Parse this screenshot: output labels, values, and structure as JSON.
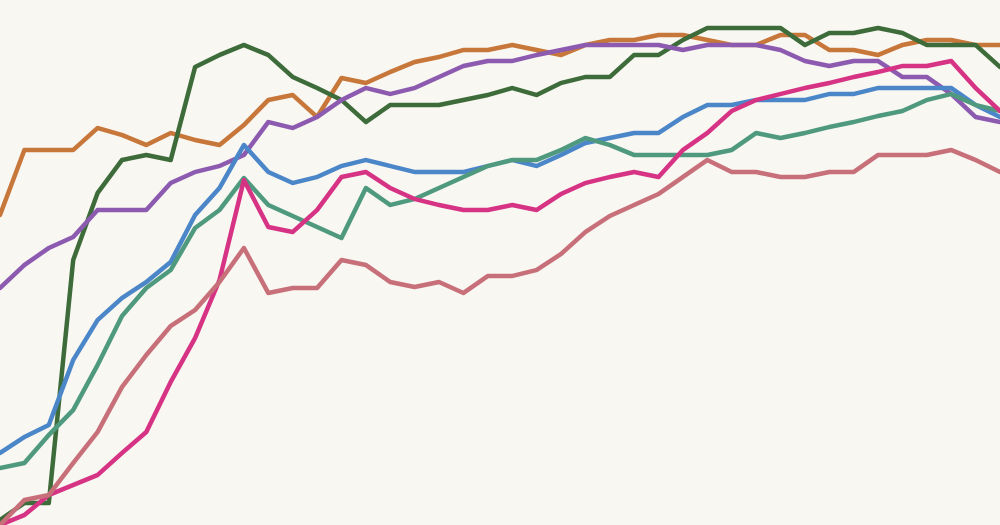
{
  "chart_data": {
    "type": "line",
    "ylim": [
      0,
      525
    ],
    "xlim": [
      0,
      41
    ],
    "series": [
      {
        "color": "#c8773a",
        "values": [
          310,
          375,
          375,
          375,
          397,
          390,
          380,
          392,
          385,
          380,
          400,
          425,
          430,
          408,
          447,
          442,
          453,
          463,
          468,
          475,
          475,
          480,
          475,
          470,
          480,
          485,
          485,
          490,
          490,
          485,
          480,
          480,
          490,
          490,
          475,
          475,
          470,
          480,
          485,
          485,
          480,
          480
        ]
      },
      {
        "color": "#3d6b3a",
        "values": [
          5,
          22,
          22,
          265,
          332,
          365,
          370,
          365,
          458,
          470,
          480,
          470,
          448,
          437,
          425,
          403,
          420,
          420,
          420,
          425,
          430,
          437,
          430,
          442,
          448,
          448,
          470,
          470,
          485,
          497,
          497,
          497,
          497,
          480,
          492,
          492,
          497,
          492,
          480,
          480,
          480,
          458
        ]
      },
      {
        "color": "#8c5bb0",
        "values": [
          237,
          260,
          277,
          288,
          315,
          315,
          315,
          342,
          353,
          359,
          370,
          403,
          397,
          408,
          425,
          437,
          431,
          437,
          448,
          459,
          464,
          464,
          470,
          475,
          480,
          480,
          480,
          480,
          475,
          480,
          480,
          480,
          475,
          464,
          459,
          464,
          464,
          448,
          448,
          431,
          408,
          403
        ]
      },
      {
        "color": "#4a86c8",
        "values": [
          72,
          88,
          100,
          165,
          205,
          227,
          243,
          263,
          310,
          337,
          380,
          353,
          342,
          348,
          359,
          365,
          359,
          353,
          353,
          353,
          359,
          365,
          359,
          370,
          382,
          387,
          392,
          392,
          408,
          420,
          420,
          425,
          425,
          425,
          431,
          431,
          437,
          437,
          437,
          437,
          420,
          408
        ]
      },
      {
        "color": "#4f9a7e",
        "values": [
          57,
          62,
          90,
          115,
          160,
          209,
          237,
          255,
          297,
          315,
          347,
          320,
          309,
          298,
          287,
          337,
          320,
          326,
          337,
          348,
          359,
          365,
          365,
          375,
          387,
          380,
          370,
          370,
          370,
          370,
          375,
          392,
          387,
          392,
          398,
          403,
          409,
          414,
          425,
          431,
          420,
          414
        ]
      },
      {
        "color": "#d63384",
        "values": [
          0,
          10,
          30,
          40,
          50,
          72,
          93,
          143,
          187,
          245,
          345,
          298,
          293,
          315,
          348,
          353,
          337,
          326,
          320,
          315,
          315,
          320,
          315,
          331,
          342,
          348,
          353,
          348,
          375,
          392,
          414,
          425,
          431,
          437,
          442,
          448,
          453,
          459,
          459,
          464,
          437,
          414
        ]
      },
      {
        "color": "#c8707a",
        "values": [
          0,
          25,
          30,
          62,
          93,
          138,
          170,
          199,
          215,
          243,
          277,
          232,
          237,
          237,
          265,
          260,
          243,
          238,
          243,
          232,
          249,
          249,
          255,
          271,
          293,
          309,
          320,
          331,
          348,
          365,
          353,
          353,
          348,
          348,
          353,
          353,
          370,
          370,
          370,
          375,
          365,
          353
        ]
      }
    ]
  }
}
